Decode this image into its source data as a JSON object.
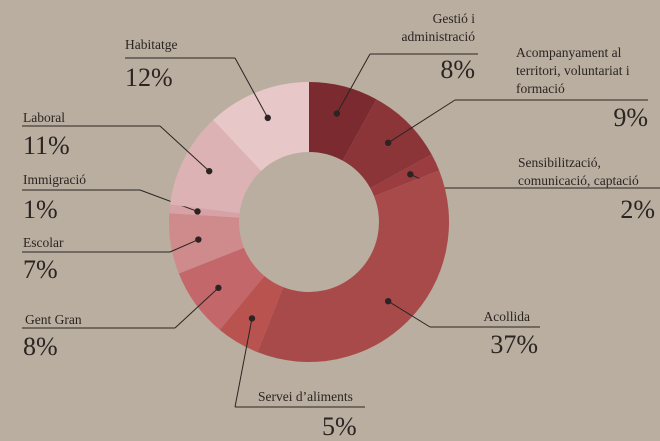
{
  "chart_data": {
    "type": "donut",
    "categories": [
      "Gestió i administració",
      "Acompanyament al territori, voluntariat i formació",
      "Sensibilització, comunicació, captació",
      "Acollida",
      "Servei d’aliments",
      "Gent Gran",
      "Escolar",
      "Immigració",
      "Laboral",
      "Habitatge"
    ],
    "values": [
      8,
      9,
      2,
      37,
      5,
      8,
      7,
      1,
      11,
      12
    ],
    "value_labels": [
      "8%",
      "9%",
      "2%",
      "37%",
      "5%",
      "8%",
      "7%",
      "1%",
      "11%",
      "12%"
    ],
    "colors": [
      "#7b2b2f",
      "#8c3539",
      "#9b3d40",
      "#a84a4a",
      "#b95350",
      "#c4676a",
      "#cf8a8c",
      "#d6a2a5",
      "#ddb2b5",
      "#e7c7c8"
    ]
  }
}
